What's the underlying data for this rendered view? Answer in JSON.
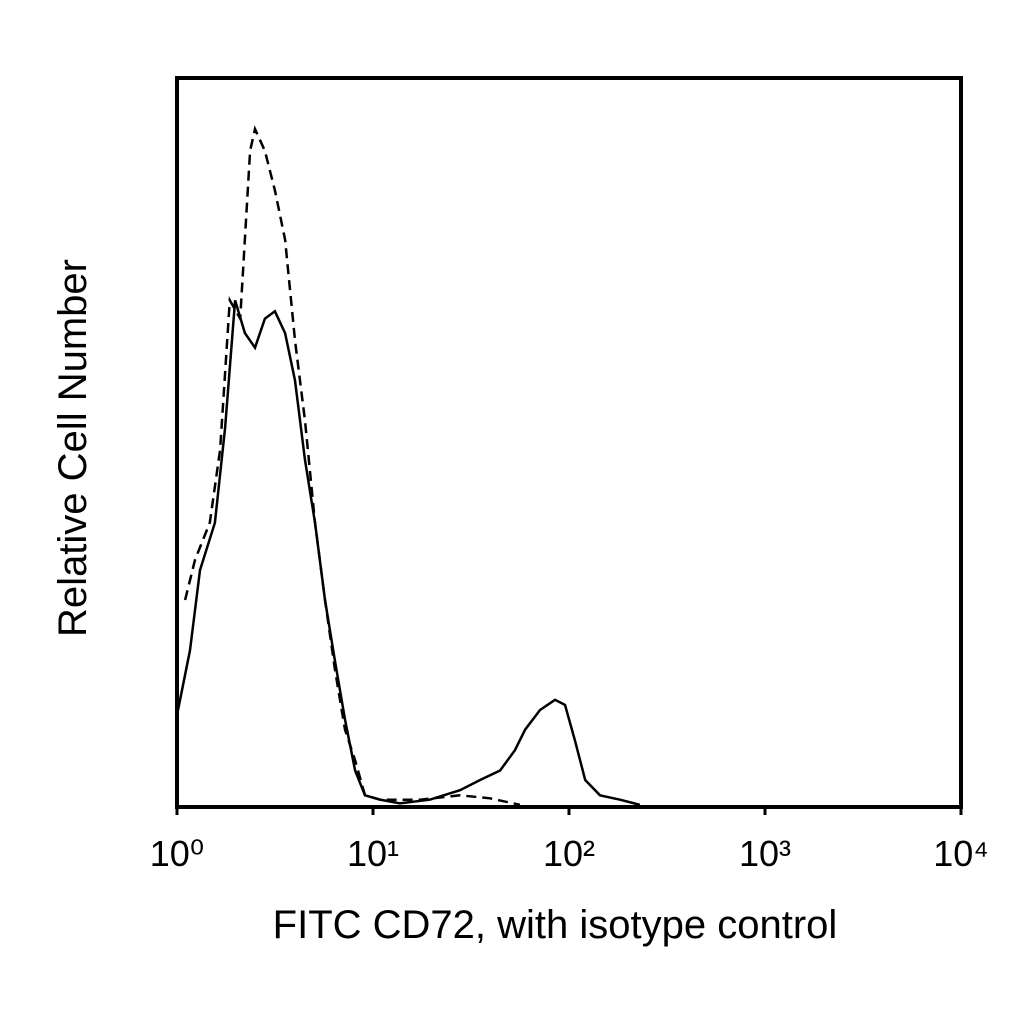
{
  "chart_data": {
    "type": "line",
    "x_label": "FITC CD72, with isotype control",
    "y_label": "Relative Cell Number",
    "xscale": "log",
    "xlim": [
      1,
      10000
    ],
    "xticks": [
      {
        "value": 1,
        "label": "10⁰"
      },
      {
        "value": 10,
        "label": "10¹"
      },
      {
        "value": 100,
        "label": "10²"
      },
      {
        "value": 1000,
        "label": "10³"
      },
      {
        "value": 10000,
        "label": "10⁴"
      }
    ],
    "ylim": [
      0,
      100
    ],
    "series": [
      {
        "color": "#000000",
        "dash": "solid",
        "x": [
          1.0,
          1.165,
          1.31,
          1.56,
          1.76,
          1.98,
          2.22,
          2.5,
          2.81,
          3.16,
          3.56,
          4.0,
          4.5,
          5.06,
          5.69,
          6.4,
          7.2,
          8.1,
          9.1,
          10.9,
          13.7,
          19.5,
          27.8,
          35.2,
          44.5,
          53.0,
          59.7,
          71.1,
          84.8,
          95.4,
          107,
          121,
          144,
          182,
          230
        ],
        "values": [
          12.6,
          21.5,
          32.5,
          39,
          52,
          69.5,
          65,
          63,
          67,
          68,
          65,
          58.5,
          47.6,
          39,
          28.4,
          20,
          12,
          5,
          1.6,
          1,
          0.5,
          1,
          2.3,
          3.7,
          5,
          7.8,
          10.6,
          13.3,
          14.7,
          14,
          9.2,
          3.7,
          1.6,
          1,
          0.3
        ]
      },
      {
        "color": "#000000",
        "dash": "dashed",
        "x": [
          1.1,
          1.235,
          1.47,
          1.66,
          1.86,
          2.1,
          2.36,
          2.5,
          2.81,
          3.16,
          3.56,
          4.0,
          4.5,
          5.06,
          5.69,
          6.4,
          7.2,
          8.1,
          9.1,
          10.9,
          17.4,
          27.8,
          39.5,
          56.2
        ],
        "values": [
          28.4,
          33.9,
          39,
          49,
          69.5,
          67,
          90,
          93,
          90,
          84.6,
          77.8,
          64,
          53,
          39,
          28.4,
          18.8,
          10.6,
          6.4,
          1.6,
          1,
          1,
          1.6,
          1.2,
          0.3
        ]
      }
    ]
  }
}
